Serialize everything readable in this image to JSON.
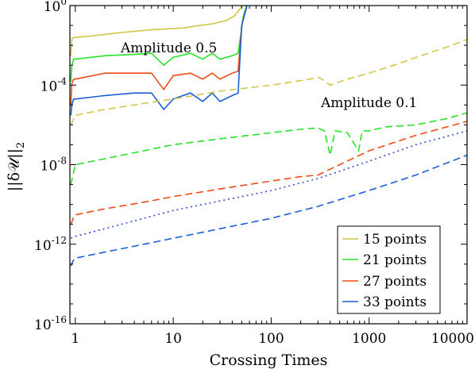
{
  "chart_data": {
    "type": "line",
    "xlabel": "Crossing Times",
    "ylabel": "||δ𝒰||",
    "ylabel_subscript": "2",
    "x_scale": "log",
    "y_scale": "log",
    "xlim": [
      0.88,
      10000
    ],
    "ylim": [
      1e-16,
      1
    ],
    "x_ticks": [
      {
        "value": 1,
        "label": "1"
      },
      {
        "value": 10,
        "label": "10"
      },
      {
        "value": 100,
        "label": "100"
      },
      {
        "value": 1000,
        "label": "1000"
      },
      {
        "value": 10000,
        "label": "10000"
      }
    ],
    "y_ticks": [
      {
        "value": 1e-16,
        "base": "10",
        "exp": "-16"
      },
      {
        "value": 1e-12,
        "base": "10",
        "exp": "-12"
      },
      {
        "value": 1e-08,
        "base": "10",
        "exp": "-8"
      },
      {
        "value": 0.0001,
        "base": "10",
        "exp": "-4"
      },
      {
        "value": 1,
        "base": "10",
        "exp": "0"
      }
    ],
    "grid": false,
    "legend_position": "bottom-right",
    "legend": [
      {
        "label": "15 points",
        "color": "#d4c64a"
      },
      {
        "label": "21 points",
        "color": "#29e329"
      },
      {
        "label": "27 points",
        "color": "#f04a14"
      },
      {
        "label": "33 points",
        "color": "#1a5fd6"
      }
    ],
    "annotations": [
      {
        "text": "Amplitude 0.5",
        "x": 22,
        "y": 0.03
      },
      {
        "text": "Amplitude 0.1",
        "x": 2500,
        "y": 3e-05
      }
    ],
    "series": [
      {
        "group": "Amplitude 0.5",
        "legend_index": 0,
        "style": "solid",
        "color": "#d4c64a",
        "x": [
          0.9,
          0.92,
          0.96,
          1.0,
          1.5,
          3,
          6,
          10,
          13,
          16,
          25,
          35,
          42,
          47,
          52,
          60
        ],
        "y": [
          0.003,
          0.02,
          0.025,
          0.025,
          0.03,
          0.045,
          0.06,
          0.07,
          0.075,
          0.09,
          0.12,
          0.18,
          0.3,
          0.6,
          1.2,
          3
        ]
      },
      {
        "group": "Amplitude 0.5",
        "legend_index": 1,
        "style": "solid",
        "color": "#29e329",
        "x": [
          0.9,
          0.92,
          0.96,
          1.0,
          2,
          4,
          6,
          8,
          10,
          15,
          20,
          25,
          30,
          40,
          46,
          52,
          60
        ],
        "y": [
          0.00015,
          0.001,
          0.002,
          0.002,
          0.003,
          0.0035,
          0.004,
          0.001,
          0.0025,
          0.004,
          0.002,
          0.004,
          0.002,
          0.003,
          0.004,
          0.3,
          3
        ]
      },
      {
        "group": "Amplitude 0.5",
        "legend_index": 2,
        "style": "solid",
        "color": "#f04a14",
        "x": [
          0.9,
          0.92,
          0.96,
          1.0,
          2,
          4,
          6,
          8,
          10,
          15,
          20,
          25,
          30,
          40,
          46,
          50,
          60
        ],
        "y": [
          1e-05,
          0.00012,
          0.0002,
          0.0002,
          0.0004,
          0.0004,
          0.0004,
          6e-05,
          0.0003,
          0.0004,
          0.0002,
          0.0004,
          0.0002,
          0.0004,
          0.0005,
          0.1,
          3
        ]
      },
      {
        "group": "Amplitude 0.5",
        "legend_index": 3,
        "style": "solid",
        "color": "#1a5fd6",
        "x": [
          0.9,
          0.92,
          0.96,
          1.0,
          2,
          4,
          6,
          8,
          10,
          15,
          20,
          25,
          30,
          40,
          46,
          50,
          60
        ],
        "y": [
          3e-06,
          1e-05,
          2e-05,
          2e-05,
          3e-05,
          4e-05,
          4e-05,
          6e-06,
          2e-05,
          4e-05,
          1.5e-05,
          4e-05,
          1.5e-05,
          3e-05,
          4e-05,
          0.1,
          3
        ]
      },
      {
        "group": "Amplitude 0.1",
        "legend_index": 0,
        "style": "dashed",
        "color": "#d4c64a",
        "x": [
          0.9,
          1,
          2,
          5,
          10,
          30,
          100,
          250,
          300,
          330,
          400,
          600,
          1000,
          2000,
          4000,
          7000,
          10000
        ],
        "y": [
          1e-06,
          3e-06,
          6e-06,
          1.2e-05,
          2e-05,
          5e-05,
          0.0001,
          0.0002,
          0.00025,
          0.0002,
          0.0001,
          0.0002,
          0.0004,
          0.0012,
          0.004,
          0.01,
          0.02
        ]
      },
      {
        "group": "Amplitude 0.1",
        "legend_index": 1,
        "style": "dashed",
        "color": "#29e329",
        "x": [
          0.9,
          1,
          2,
          5,
          10,
          30,
          100,
          200,
          300,
          350,
          400,
          450,
          600,
          780,
          850,
          1000,
          1500,
          3000,
          6000,
          10000
        ],
        "y": [
          1e-09,
          1e-08,
          2e-08,
          5e-08,
          1e-07,
          2e-07,
          4e-07,
          6e-07,
          7e-07,
          5e-07,
          3e-08,
          5e-07,
          4e-07,
          5e-08,
          5e-07,
          5e-07,
          8e-07,
          1e-06,
          2e-06,
          4e-06
        ]
      },
      {
        "group": "Amplitude 0.1",
        "legend_index": 2,
        "style": "dashed",
        "color": "#f04a14",
        "x": [
          0.9,
          0.95,
          1,
          2,
          5,
          10,
          30,
          100,
          200,
          300,
          500,
          1000,
          3000,
          10000
        ],
        "y": [
          1e-11,
          2e-11,
          3e-11,
          6e-11,
          1.3e-10,
          2.5e-10,
          6e-10,
          1.5e-09,
          2.5e-09,
          3e-09,
          1e-08,
          5e-08,
          3e-07,
          1.5e-06
        ]
      },
      {
        "group": "Amplitude 0.1",
        "legend_index": 2,
        "style": "dotted",
        "color": "#2f4fcf",
        "x": [
          0.9,
          1,
          2,
          5,
          10,
          30,
          100,
          300,
          1000,
          3000,
          10000
        ],
        "y": [
          2e-12,
          2.5e-12,
          6e-12,
          2e-11,
          5e-11,
          1.5e-10,
          5e-10,
          2e-09,
          1.5e-08,
          1e-07,
          5e-07
        ]
      },
      {
        "group": "Amplitude 0.1",
        "legend_index": 3,
        "style": "dashed",
        "color": "#1a5fd6",
        "x": [
          0.9,
          0.95,
          1,
          2,
          5,
          10,
          30,
          100,
          300,
          1000,
          3000,
          10000
        ],
        "y": [
          8e-14,
          1.5e-13,
          2e-13,
          4e-13,
          1e-12,
          2e-12,
          6e-12,
          2e-11,
          8e-11,
          5e-10,
          3e-09,
          3e-08
        ]
      }
    ]
  }
}
